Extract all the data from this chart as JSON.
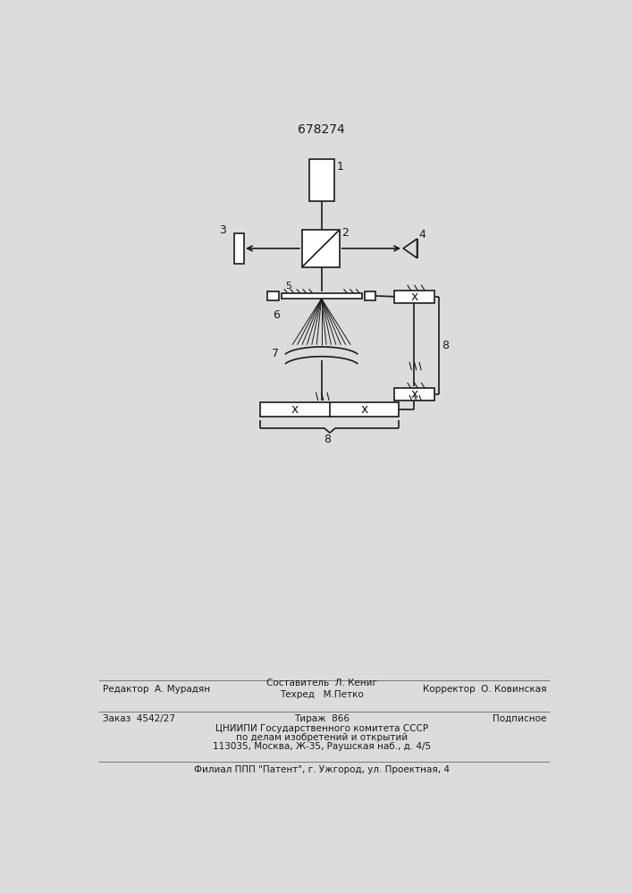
{
  "title": "678274",
  "bg_color": "#dcdcdc",
  "line_color": "#1a1a1a",
  "footer_line1_left": "Редактор  А. Мурадян",
  "footer_line1_center_top": "Составитель  Л. Кениг",
  "footer_line1_center_bot": "Техред   М.Петко",
  "footer_line1_right": "Корректор  О. Ковинская",
  "footer_line2_left": "Заказ  4542/27",
  "footer_line2_center": "Тираж  866",
  "footer_line2_right": "Подписное",
  "footer_line3": "ЦНИИПИ Государственного комитета СССР",
  "footer_line4": "по делам изобретений и открытий",
  "footer_line5": "113035, Москва, Ж-35, Раушская наб., д. 4/5",
  "footer_line6": "Филиал ППП \"Патент\", г. Ужгород, ул. Проектная, 4"
}
